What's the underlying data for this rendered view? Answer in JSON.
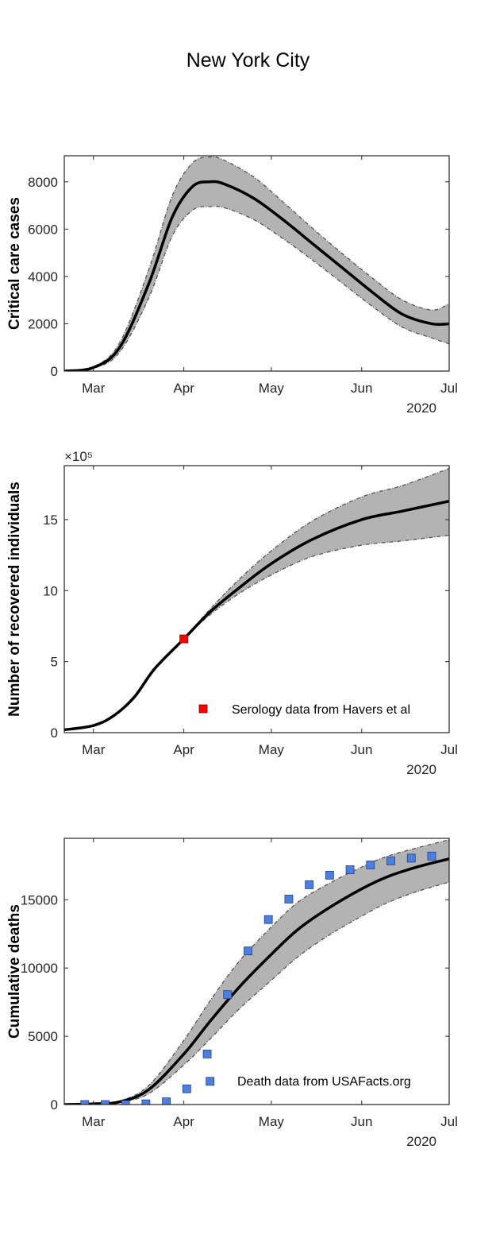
{
  "title": "New York City",
  "chart_data": [
    {
      "type": "line",
      "xlabel": "",
      "ylabel": "Critical care cases",
      "x_ticks": [
        "Mar",
        "Apr",
        "May",
        "Jun",
        "Jul"
      ],
      "x_secondary_label": "2020",
      "ylim": [
        0,
        9100
      ],
      "yticks": [
        0,
        2000,
        4000,
        6000,
        8000
      ],
      "y_exponent": "",
      "x": [
        "2020-02-20",
        "2020-03-01",
        "2020-03-10",
        "2020-03-20",
        "2020-03-28",
        "2020-04-04",
        "2020-04-10",
        "2020-04-15",
        "2020-04-25",
        "2020-05-05",
        "2020-05-15",
        "2020-05-25",
        "2020-06-05",
        "2020-06-15",
        "2020-06-25",
        "2020-07-01"
      ],
      "series": [
        {
          "values": [
            0,
            150,
            1000,
            3700,
            6500,
            7800,
            8000,
            7900,
            7300,
            6400,
            5400,
            4400,
            3300,
            2400,
            2000,
            2000
          ]
        },
        {
          "values": [
            0,
            180,
            1200,
            4300,
            7400,
            8800,
            9050,
            8900,
            8200,
            7150,
            6050,
            5000,
            3900,
            3000,
            2580,
            2850
          ]
        },
        {
          "values": [
            0,
            120,
            800,
            3100,
            5700,
            6800,
            6950,
            6900,
            6400,
            5600,
            4700,
            3750,
            2700,
            1850,
            1400,
            1150
          ]
        }
      ],
      "points": [],
      "legend": "",
      "legend_position": "none"
    },
    {
      "type": "line",
      "xlabel": "",
      "ylabel": "Number of recovered individuals",
      "x_ticks": [
        "Mar",
        "Apr",
        "May",
        "Jun",
        "Jul"
      ],
      "x_secondary_label": "2020",
      "ylim": [
        0,
        18.8
      ],
      "yticks": [
        0,
        5,
        10,
        15
      ],
      "y_exponent": "×10⁵",
      "x": [
        "2020-02-20",
        "2020-03-01",
        "2020-03-08",
        "2020-03-15",
        "2020-03-22",
        "2020-04-01",
        "2020-04-10",
        "2020-04-20",
        "2020-05-01",
        "2020-05-15",
        "2020-06-01",
        "2020-06-15",
        "2020-07-01"
      ],
      "series": [
        {
          "values": [
            0.2,
            0.5,
            1.2,
            2.5,
            4.5,
            6.6,
            8.5,
            10.2,
            11.9,
            13.6,
            15.0,
            15.6,
            16.3
          ]
        },
        {
          "values": [
            0.2,
            0.5,
            1.2,
            2.5,
            4.5,
            6.6,
            8.7,
            10.8,
            12.8,
            14.9,
            16.6,
            17.4,
            18.6
          ]
        },
        {
          "values": [
            0.2,
            0.5,
            1.2,
            2.5,
            4.5,
            6.6,
            8.3,
            9.8,
            11.1,
            12.4,
            13.2,
            13.5,
            13.9
          ]
        }
      ],
      "points": [
        {
          "x": "2020-04-01",
          "y": 6.6
        }
      ],
      "legend": "Serology data from Havers et al",
      "legend_position": "bottom-right"
    },
    {
      "type": "line",
      "xlabel": "",
      "ylabel": "Cumulative deaths",
      "x_ticks": [
        "Mar",
        "Apr",
        "May",
        "Jun",
        "Jul"
      ],
      "x_secondary_label": "2020",
      "ylim": [
        0,
        19500
      ],
      "yticks": [
        0,
        5000,
        10000,
        15000
      ],
      "y_exponent": "",
      "x": [
        "2020-02-20",
        "2020-03-01",
        "2020-03-10",
        "2020-03-20",
        "2020-04-01",
        "2020-04-10",
        "2020-04-20",
        "2020-05-01",
        "2020-05-10",
        "2020-05-20",
        "2020-06-01",
        "2020-06-10",
        "2020-06-20",
        "2020-07-01"
      ],
      "series": [
        {
          "values": [
            0,
            50,
            200,
            1100,
            3700,
            6100,
            8600,
            11000,
            12800,
            14300,
            15800,
            16700,
            17400,
            18000
          ]
        },
        {
          "values": [
            0,
            60,
            260,
            1400,
            4700,
            7600,
            10500,
            13000,
            14800,
            16100,
            17400,
            18200,
            18800,
            19400
          ]
        },
        {
          "values": [
            0,
            40,
            160,
            800,
            2900,
            4800,
            7000,
            9100,
            10800,
            12300,
            13800,
            14800,
            15600,
            16300
          ]
        }
      ],
      "points": [
        {
          "x": "2020-02-27",
          "y": 0
        },
        {
          "x": "2020-03-05",
          "y": 0
        },
        {
          "x": "2020-03-12",
          "y": 0
        },
        {
          "x": "2020-03-19",
          "y": 50
        },
        {
          "x": "2020-03-26",
          "y": 200
        },
        {
          "x": "2020-04-02",
          "y": 1150
        },
        {
          "x": "2020-04-09",
          "y": 3700
        },
        {
          "x": "2020-04-10",
          "y": 1700
        },
        {
          "x": "2020-04-16",
          "y": 8050
        },
        {
          "x": "2020-04-23",
          "y": 11250
        },
        {
          "x": "2020-04-30",
          "y": 13550
        },
        {
          "x": "2020-05-07",
          "y": 15050
        },
        {
          "x": "2020-05-14",
          "y": 16100
        },
        {
          "x": "2020-05-21",
          "y": 16800
        },
        {
          "x": "2020-05-28",
          "y": 17200
        },
        {
          "x": "2020-06-04",
          "y": 17550
        },
        {
          "x": "2020-06-11",
          "y": 17850
        },
        {
          "x": "2020-06-18",
          "y": 18050
        },
        {
          "x": "2020-06-25",
          "y": 18200
        }
      ],
      "legend": "Death data from USAFacts.org",
      "legend_position": "bottom-right"
    }
  ],
  "colors": {
    "band_fill": "#b3b3b3",
    "band_edge": "#555555",
    "median_line": "#000000",
    "serology_marker": "#ff0000",
    "death_marker": "#4f7fdc",
    "axes": "#262626"
  }
}
